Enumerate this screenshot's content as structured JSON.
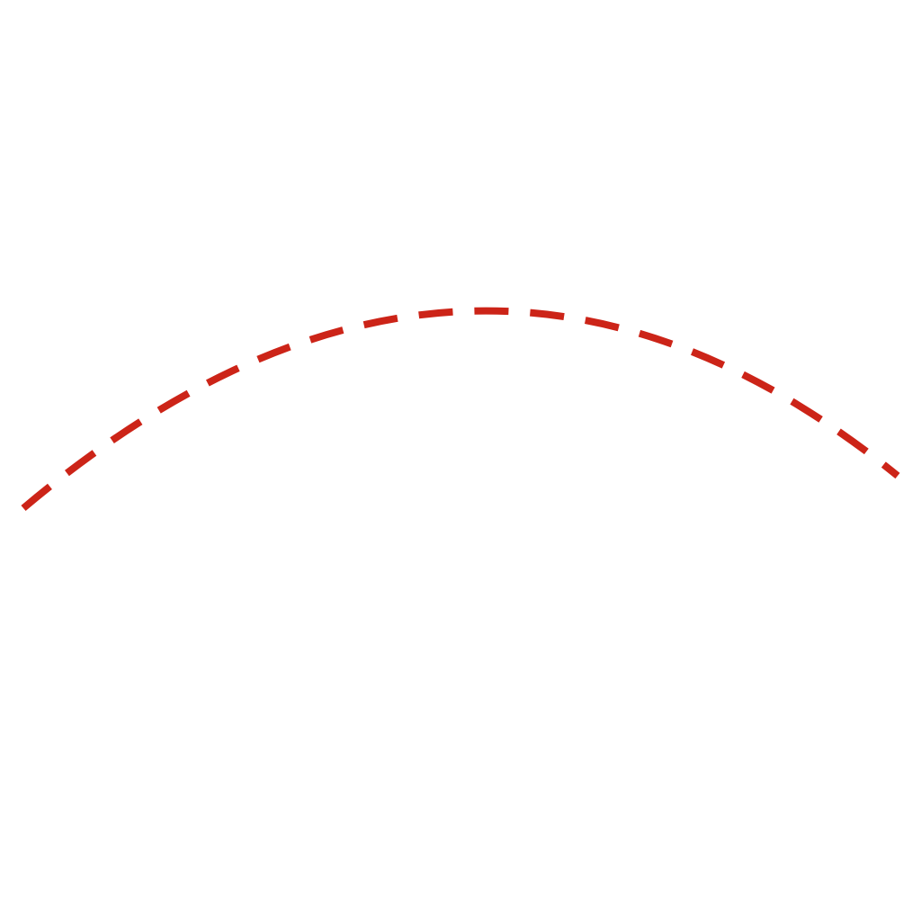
{
  "canvas": {
    "background": "#ffffff"
  },
  "arc": {
    "shape": "dashed-arc",
    "stroke_color": "#cc2418",
    "style": "dashed"
  }
}
